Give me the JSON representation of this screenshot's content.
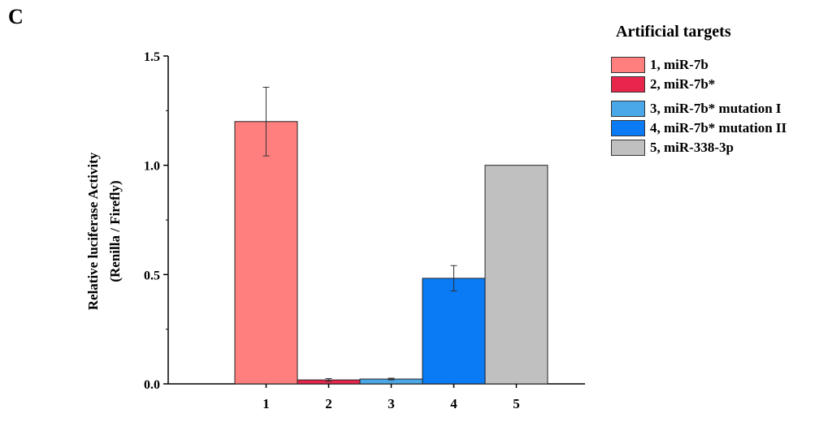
{
  "panel_label": "C",
  "chart_data": {
    "type": "bar",
    "categories": [
      "1",
      "2",
      "3",
      "4",
      "5"
    ],
    "values": [
      1.2,
      0.018,
      0.022,
      0.483,
      1.0
    ],
    "errors": [
      0.157,
      0.006,
      0.004,
      0.058,
      0.0
    ],
    "colors": [
      "#ff7f7f",
      "#e8264c",
      "#4aa8e8",
      "#0a7af5",
      "#c0c0c0"
    ],
    "ylabel_line1": "Relative luciferase Activity",
    "ylabel_line2": "(Renilla / Firefly)",
    "xlabel": "",
    "ylim": [
      0,
      1.5
    ],
    "yticks": [
      "0.0",
      "0.5",
      "1.0",
      "1.5"
    ],
    "legend_title": "Artificial targets",
    "legend_position": "right",
    "legend": [
      {
        "label": "1, miR-7b",
        "color": "#ff7f7f"
      },
      {
        "label": "2, miR-7b*",
        "color": "#e8264c"
      },
      {
        "label": "3, miR-7b* mutation I",
        "color": "#4aa8e8"
      },
      {
        "label": "4, miR-7b* mutation II",
        "color": "#0a7af5"
      },
      {
        "label": "5, miR-338-3p",
        "color": "#c0c0c0"
      }
    ]
  }
}
